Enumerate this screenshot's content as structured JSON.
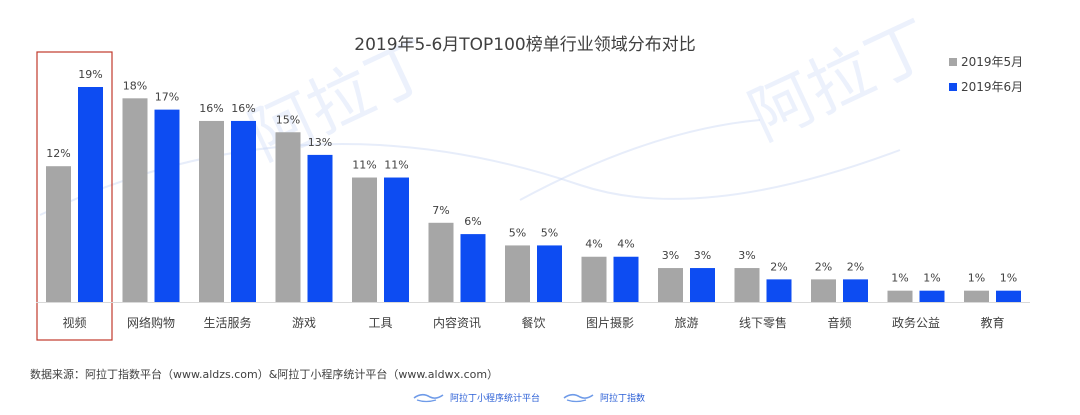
{
  "chart_data": {
    "type": "bar",
    "title": "2019年5-6月TOP100榜单行业领域分布对比",
    "categories": [
      "视频",
      "网络购物",
      "生活服务",
      "游戏",
      "工具",
      "内容资讯",
      "餐饮",
      "图片摄影",
      "旅游",
      "线下零售",
      "音频",
      "政务公益",
      "教育"
    ],
    "series": [
      {
        "name": "2019年5月",
        "color": "#a6a6a6",
        "values": [
          12,
          18,
          16,
          15,
          11,
          7,
          5,
          4,
          3,
          3,
          2,
          1,
          1
        ]
      },
      {
        "name": "2019年6月",
        "color": "#0d4cf2",
        "values": [
          19,
          17,
          16,
          13,
          11,
          6,
          5,
          4,
          3,
          2,
          2,
          1,
          1
        ]
      }
    ],
    "value_suffix": "%",
    "ylim": [
      0,
      20
    ],
    "grid": false,
    "legend_position": "top-right",
    "highlight_category": "视频",
    "highlight_color": "#c0392b"
  },
  "source_text": "数据来源：阿拉丁指数平台（www.aldzs.com）&阿拉丁小程序统计平台（www.aldwx.com）",
  "footer": {
    "logo1": "阿拉丁小程序统计平台",
    "logo2": "阿拉丁指数"
  },
  "watermark": "阿拉丁"
}
